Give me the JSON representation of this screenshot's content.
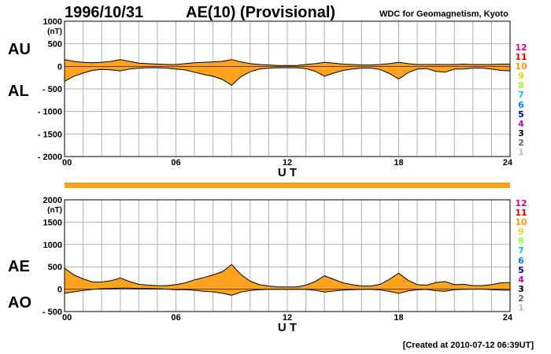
{
  "header": {
    "date": "1996/10/31",
    "index": "AE(10) (Provisional)",
    "source": "WDC for Geomagnetism, Kyoto"
  },
  "footer": {
    "created": "[Created at 2010-07-12 06:39UT]"
  },
  "colors": {
    "fill": "#ffa31c",
    "grid": "#b0b0b0",
    "band": "#f7a21a"
  },
  "stations": [
    {
      "label": "12",
      "color": "#e6007e"
    },
    {
      "label": "11",
      "color": "#e40000"
    },
    {
      "label": "10",
      "color": "#ff9900"
    },
    {
      "label": "9",
      "color": "#e0e000"
    },
    {
      "label": "8",
      "color": "#99ff33"
    },
    {
      "label": "7",
      "color": "#00cccc"
    },
    {
      "label": "6",
      "color": "#0080ff"
    },
    {
      "label": "5",
      "color": "#0000b0"
    },
    {
      "label": "4",
      "color": "#cc00cc"
    },
    {
      "label": "3",
      "color": "#000000"
    },
    {
      "label": "2",
      "color": "#666666"
    },
    {
      "label": "1",
      "color": "#bbbbbb"
    }
  ],
  "chart_data": [
    {
      "type": "area",
      "upper_label": "AU",
      "lower_label": "AL",
      "unit": "(nT)",
      "xlabel": "U T",
      "x_ticks": [
        "00",
        "06",
        "12",
        "18",
        "24"
      ],
      "xlim": [
        0,
        24
      ],
      "ylim": [
        -2000,
        1000
      ],
      "y_ticks": [
        "1000",
        "500",
        "0",
        "- 500",
        "- 1000",
        "- 1500",
        "- 2000"
      ],
      "y_tick_values": [
        1000,
        500,
        0,
        -500,
        -1000,
        -1500,
        -2000
      ],
      "grid": true,
      "series": [
        {
          "name": "AU",
          "x": [
            0,
            0.5,
            1,
            1.5,
            2,
            2.5,
            3,
            3.5,
            4,
            4.5,
            5,
            5.5,
            6,
            6.5,
            7,
            7.5,
            8,
            8.5,
            9,
            9.5,
            10,
            10.5,
            11,
            11.5,
            12,
            12.5,
            13,
            13.5,
            14,
            14.5,
            15,
            15.5,
            16,
            16.5,
            17,
            17.5,
            18,
            18.5,
            19,
            19.5,
            20,
            20.5,
            21,
            21.5,
            22,
            22.5,
            23,
            23.5,
            24
          ],
          "values": [
            150,
            110,
            90,
            80,
            90,
            110,
            150,
            110,
            70,
            60,
            50,
            40,
            40,
            60,
            80,
            90,
            100,
            110,
            150,
            100,
            60,
            40,
            30,
            20,
            20,
            20,
            40,
            60,
            90,
            70,
            50,
            40,
            30,
            30,
            40,
            60,
            90,
            60,
            40,
            40,
            40,
            40,
            40,
            50,
            40,
            40,
            40,
            50,
            50
          ]
        },
        {
          "name": "AL",
          "x": [
            0,
            0.5,
            1,
            1.5,
            2,
            2.5,
            3,
            3.5,
            4,
            4.5,
            5,
            5.5,
            6,
            6.5,
            7,
            7.5,
            8,
            8.5,
            9,
            9.5,
            10,
            10.5,
            11,
            11.5,
            12,
            12.5,
            13,
            13.5,
            14,
            14.5,
            15,
            15.5,
            16,
            16.5,
            17,
            17.5,
            18,
            18.5,
            19,
            19.5,
            20,
            20.5,
            21,
            21.5,
            22,
            22.5,
            23,
            23.5,
            24
          ],
          "values": [
            -330,
            -220,
            -150,
            -90,
            -70,
            -80,
            -100,
            -60,
            -40,
            -30,
            -30,
            -40,
            -60,
            -80,
            -130,
            -180,
            -220,
            -290,
            -420,
            -230,
            -120,
            -60,
            -40,
            -30,
            -30,
            -30,
            -50,
            -110,
            -220,
            -150,
            -90,
            -60,
            -40,
            -40,
            -70,
            -160,
            -280,
            -140,
            -60,
            -50,
            -110,
            -130,
            -60,
            -60,
            -40,
            -40,
            -60,
            -90,
            -100
          ]
        }
      ]
    },
    {
      "type": "area",
      "upper_label": "AE",
      "lower_label": "AO",
      "unit": "(nT)",
      "xlabel": "U T",
      "x_ticks": [
        "00",
        "06",
        "12",
        "18",
        "24"
      ],
      "xlim": [
        0,
        24
      ],
      "ylim": [
        -500,
        2000
      ],
      "y_ticks": [
        "2000",
        "1500",
        "1000",
        "500",
        "0",
        "- 500"
      ],
      "y_tick_values": [
        2000,
        1500,
        1000,
        500,
        0,
        -500
      ],
      "grid": true,
      "series": [
        {
          "name": "AE",
          "x": [
            0,
            0.5,
            1,
            1.5,
            2,
            2.5,
            3,
            3.5,
            4,
            4.5,
            5,
            5.5,
            6,
            6.5,
            7,
            7.5,
            8,
            8.5,
            9,
            9.5,
            10,
            10.5,
            11,
            11.5,
            12,
            12.5,
            13,
            13.5,
            14,
            14.5,
            15,
            15.5,
            16,
            16.5,
            17,
            17.5,
            18,
            18.5,
            19,
            19.5,
            20,
            20.5,
            21,
            21.5,
            22,
            22.5,
            23,
            23.5,
            24
          ],
          "values": [
            470,
            320,
            230,
            160,
            160,
            190,
            250,
            170,
            110,
            90,
            80,
            80,
            100,
            140,
            210,
            260,
            320,
            390,
            550,
            330,
            180,
            100,
            70,
            50,
            50,
            50,
            90,
            170,
            300,
            220,
            140,
            100,
            70,
            70,
            110,
            220,
            360,
            200,
            100,
            90,
            150,
            170,
            100,
            110,
            80,
            80,
            100,
            140,
            150
          ]
        },
        {
          "name": "AO",
          "x": [
            0,
            0.5,
            1,
            1.5,
            2,
            2.5,
            3,
            3.5,
            4,
            4.5,
            5,
            5.5,
            6,
            6.5,
            7,
            7.5,
            8,
            8.5,
            9,
            9.5,
            10,
            10.5,
            11,
            11.5,
            12,
            12.5,
            13,
            13.5,
            14,
            14.5,
            15,
            15.5,
            16,
            16.5,
            17,
            17.5,
            18,
            18.5,
            19,
            19.5,
            20,
            20.5,
            21,
            21.5,
            22,
            22.5,
            23,
            23.5,
            24
          ],
          "values": [
            -90,
            -60,
            -30,
            -5,
            10,
            15,
            25,
            25,
            15,
            15,
            10,
            0,
            -10,
            -10,
            -25,
            -45,
            -60,
            -90,
            -135,
            -65,
            -30,
            -10,
            -5,
            -5,
            -5,
            -5,
            -5,
            -25,
            -65,
            -40,
            -20,
            -10,
            -5,
            -5,
            -15,
            -50,
            -95,
            -40,
            -10,
            -5,
            -35,
            -45,
            -10,
            -5,
            0,
            0,
            -10,
            -20,
            -25
          ]
        }
      ]
    }
  ]
}
